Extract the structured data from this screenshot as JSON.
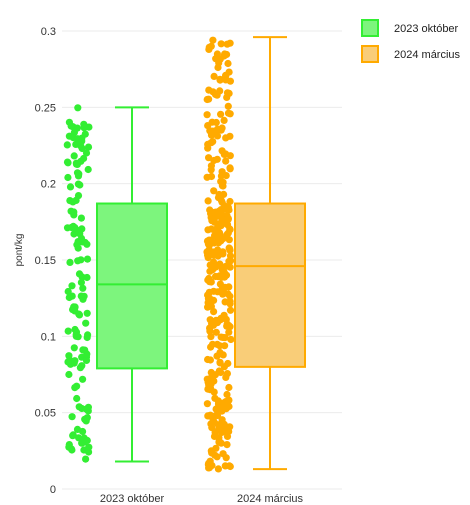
{
  "chart_data": {
    "type": "boxplot",
    "ylabel": "pont/kg",
    "xlabel": "",
    "ylim": [
      0,
      0.3
    ],
    "yticks": [
      0,
      0.05,
      0.1,
      0.15,
      0.2,
      0.25,
      0.3
    ],
    "ytick_labels": [
      "0",
      "0.05",
      "0.1",
      "0.15",
      "0.2",
      "0.25",
      "0.3"
    ],
    "grid": true,
    "legend_position": "top-right",
    "categories": [
      "2023 október",
      "2024 március"
    ],
    "series": [
      {
        "name": "2023 október",
        "color": "#33ee33",
        "fill": "#7df57d",
        "min": 0.018,
        "q1": 0.079,
        "median": 0.134,
        "q3": 0.187,
        "max": 0.25,
        "point_count": 140
      },
      {
        "name": "2024 március",
        "color": "#ffaa00",
        "fill": "#f9cd78",
        "min": 0.013,
        "q1": 0.08,
        "median": 0.146,
        "q3": 0.187,
        "max": 0.296,
        "point_count": 330
      }
    ]
  }
}
